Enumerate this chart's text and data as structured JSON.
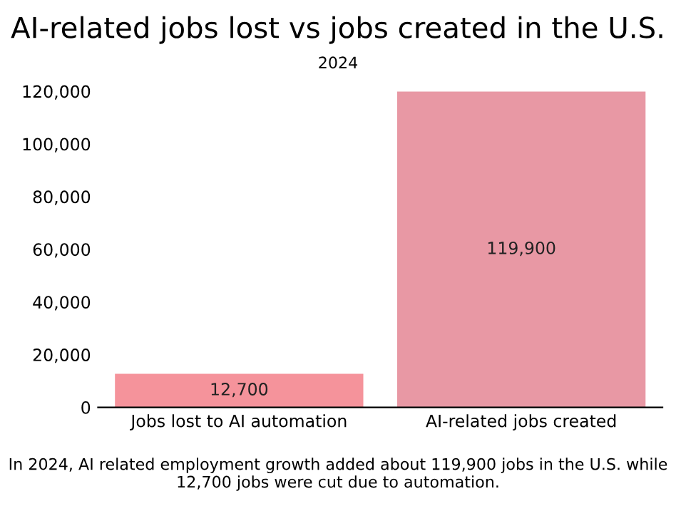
{
  "chart_data": {
    "type": "bar",
    "title": "AI-related jobs lost vs jobs created in the U.S.",
    "subtitle": "2024",
    "categories": [
      "Jobs lost to AI automation",
      "AI-related jobs created"
    ],
    "values": [
      12700,
      119900
    ],
    "colors": [
      "#f5939b",
      "#e898a4"
    ],
    "value_labels": [
      "12,700",
      "119,900"
    ],
    "ylim": [
      0,
      122000
    ],
    "yticks": [
      {
        "value": 0,
        "label": "0"
      },
      {
        "value": 20000,
        "label": "20,000"
      },
      {
        "value": 40000,
        "label": "40,000"
      },
      {
        "value": 60000,
        "label": "60,000"
      },
      {
        "value": 80000,
        "label": "80,000"
      },
      {
        "value": 100000,
        "label": "100,000"
      },
      {
        "value": 120000,
        "label": "120,000"
      }
    ],
    "grid": false,
    "annotations": [
      "In 2024, AI related employment growth added about 119,900 jobs in the U.S. while 12,700 jobs were cut due to automation."
    ]
  }
}
